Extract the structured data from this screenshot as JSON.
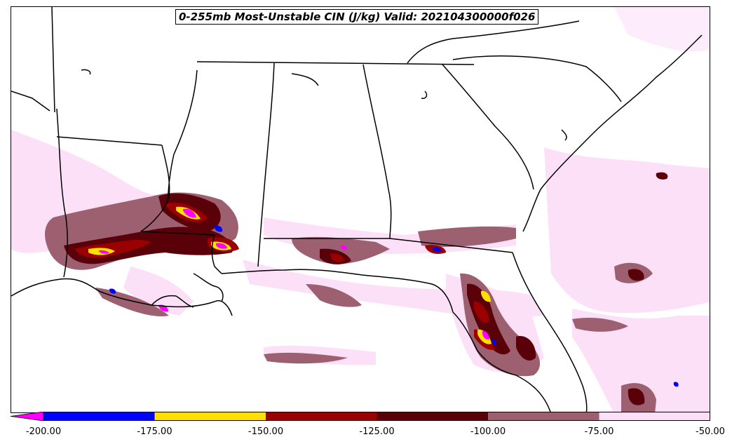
{
  "title": "0-255mb Most-Unstable CIN (J/kg) Valid: 202104300000f026",
  "colorbar": {
    "extend": "min",
    "boundaries": [
      -200,
      -175,
      -150,
      -125,
      -100,
      -75,
      -50
    ],
    "tick_labels": [
      "-200.00",
      "-175.00",
      "-150.00",
      "-125.00",
      "-100.00",
      "-75.00",
      "-50.00"
    ],
    "extend_color": "#ff00ff",
    "colors": [
      "#0000ff",
      "#ffe000",
      "#9b0000",
      "#5a0008",
      "#9c6070",
      "#fce0f8"
    ]
  },
  "map": {
    "region": "US Gulf Coast / Southeast",
    "line_color": "#000000",
    "background": "#ffffff"
  }
}
